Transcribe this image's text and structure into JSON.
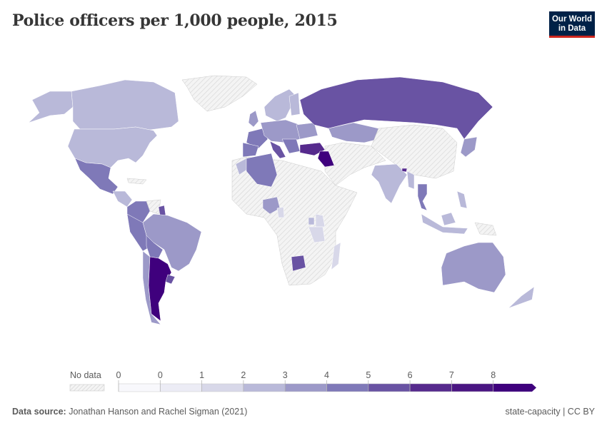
{
  "header": {
    "title": "Police officers per 1,000 people, 2015",
    "logo_line1": "Our World",
    "logo_line2": "in Data"
  },
  "legend": {
    "no_data_label": "No data",
    "tick_labels": [
      "0",
      "0",
      "1",
      "2",
      "3",
      "4",
      "5",
      "6",
      "7",
      "8"
    ],
    "bins": [
      {
        "color": "#f8f8fc"
      },
      {
        "color": "#ececf5"
      },
      {
        "color": "#d8d8e9"
      },
      {
        "color": "#b9b9d9"
      },
      {
        "color": "#9c99c8"
      },
      {
        "color": "#7f79b8"
      },
      {
        "color": "#6953a3"
      },
      {
        "color": "#562a8d"
      },
      {
        "color": "#4a1582"
      },
      {
        "color": "#3f007d"
      }
    ]
  },
  "footer": {
    "source_label": "Data source:",
    "source_text": " Jonathan Hanson and Rachel Sigman (2021)",
    "right_text": "state-capacity | CC BY"
  },
  "chart_data": {
    "type": "choropleth",
    "title": "Police officers per 1,000 people, 2015",
    "legend_bins": [
      "0",
      "0",
      "1",
      "2",
      "3",
      "4",
      "5",
      "6",
      "7",
      "8"
    ],
    "approx_country_bins": {
      "United States": "2-3",
      "Canada": "2-3",
      "Mexico": "4-5",
      "Brazil": "3-4",
      "Argentina": "8+",
      "Chile": "3-4",
      "Peru": "4-5",
      "Colombia": "4-5",
      "Bolivia": "4-5",
      "Uruguay": "5-6",
      "Guyana": "5-6",
      "Russia": "5-6",
      "Kazakhstan": "3-4",
      "Turkey": "7-8",
      "Iraq": "8+",
      "Algeria": "4-5",
      "Morocco": "2-3",
      "Spain": "4-5",
      "France": "4-5",
      "Italy": "5-6",
      "United Kingdom": "3-4",
      "India": "2-3",
      "Thailand": "4-5",
      "Japan": "3-4",
      "Indonesia": "2-3",
      "Australia": "3-4",
      "New Zealand": "2-3",
      "Nigeria": "3-4",
      "Botswana": "5-6",
      "Tanzania": "1-2",
      "Kenya": "1-2",
      "Madagascar": "1-2",
      "Bhutan": "7-8",
      "Greenland": "No data",
      "China": "No data",
      "Saudi Arabia": "No data"
    }
  }
}
